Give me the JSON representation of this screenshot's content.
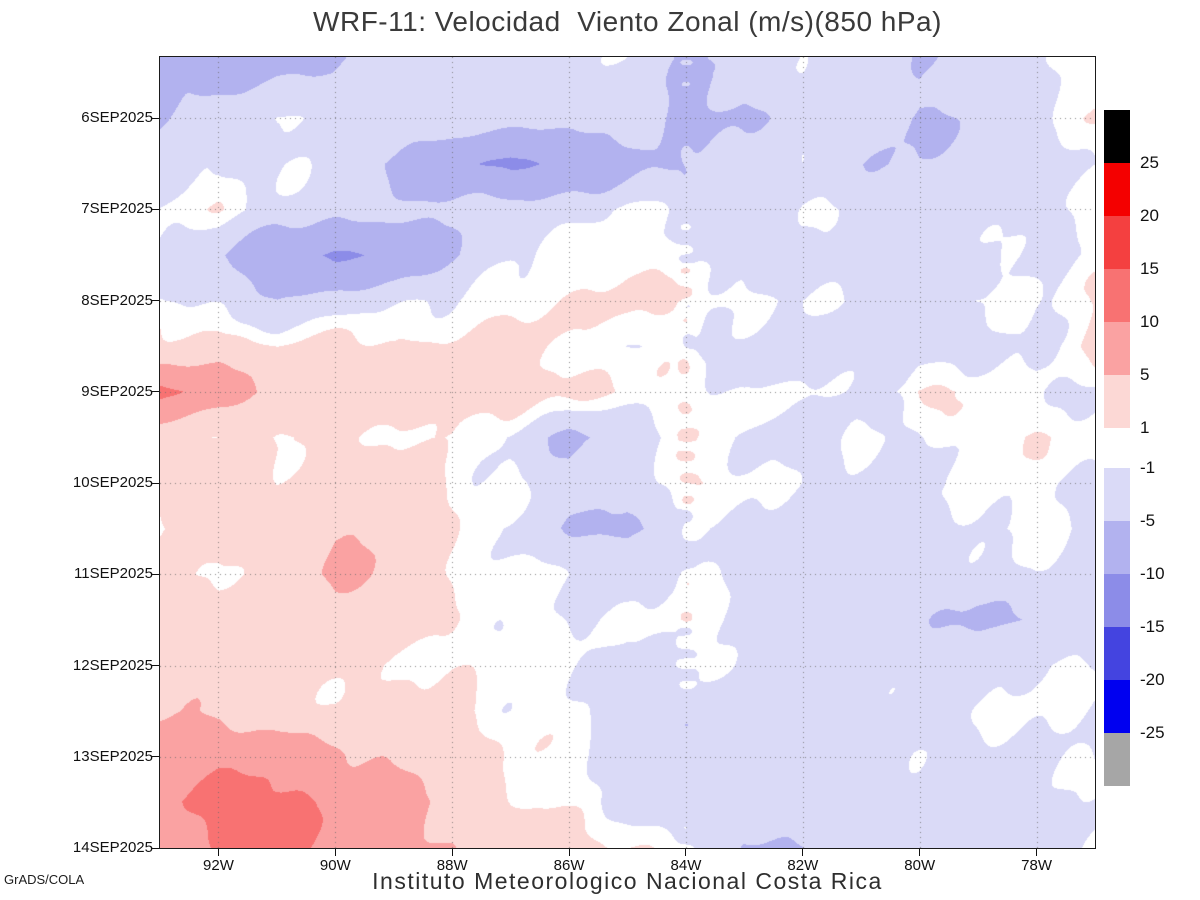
{
  "title": "WRF-11: Velocidad  Viento Zonal (m/s)(850 hPa)",
  "footer": {
    "credit": "GrADS/COLA",
    "caption": "Instituto Meteorologico Nacional Costa Rica"
  },
  "chart_data": {
    "type": "heatmap",
    "title": "WRF-11: Velocidad  Viento Zonal (m/s)(850 hPa)",
    "variable": "zonal wind speed (m/s) at 850 hPa",
    "xlabel": "",
    "ylabel": "",
    "grid_on": true,
    "legend_position": "right-colorbar",
    "x_range_deg_w": [
      93,
      77
    ],
    "y_range_sep2025": [
      5.33,
      14
    ],
    "x_ticks": [
      {
        "value": 92,
        "label": "92W"
      },
      {
        "value": 90,
        "label": "90W"
      },
      {
        "value": 88,
        "label": "88W"
      },
      {
        "value": 86,
        "label": "86W"
      },
      {
        "value": 84,
        "label": "84W"
      },
      {
        "value": 82,
        "label": "82W"
      },
      {
        "value": 80,
        "label": "80W"
      },
      {
        "value": 78,
        "label": "78W"
      }
    ],
    "y_ticks": [
      {
        "value": 6,
        "label": "6SEP2025"
      },
      {
        "value": 7,
        "label": "7SEP2025"
      },
      {
        "value": 8,
        "label": "8SEP2025"
      },
      {
        "value": 9,
        "label": "9SEP2025"
      },
      {
        "value": 10,
        "label": "10SEP2025"
      },
      {
        "value": 11,
        "label": "11SEP2025"
      },
      {
        "value": 12,
        "label": "12SEP2025"
      },
      {
        "value": 13,
        "label": "13SEP2025"
      },
      {
        "value": 14,
        "label": "14SEP2025"
      }
    ],
    "levels": [
      -25,
      -20,
      -15,
      -10,
      -5,
      -1,
      1,
      5,
      10,
      15,
      20,
      25
    ],
    "band_colors": [
      "#a6a6a6",
      "#0000f0",
      "#4444e0",
      "#8c8ce8",
      "#b2b2ef",
      "#dadaf7",
      "#ffffff",
      "#fcd8d5",
      "#faa2a2",
      "#f87272",
      "#f44040",
      "#f40000",
      "#000000"
    ],
    "colorbar_labels": [
      "25",
      "20",
      "15",
      "10",
      "5",
      "1",
      "-1",
      "-5",
      "-10",
      "-15",
      "-20",
      "-25"
    ],
    "grid": {
      "lons_w": [
        93,
        92,
        91,
        90,
        89,
        88,
        87,
        86,
        85,
        84,
        83,
        82,
        81,
        80,
        79,
        78,
        77
      ],
      "times_sep2025": [
        5.5,
        6,
        6.5,
        7,
        7.5,
        8,
        8.5,
        9,
        9.5,
        10,
        10.5,
        11,
        11.5,
        12,
        12.5,
        13,
        13.5,
        14
      ],
      "values": [
        [
          -7,
          -6,
          -5,
          -5,
          -4,
          -4,
          -3,
          -2,
          -2,
          -5,
          -4,
          -2,
          -2,
          -5,
          -4,
          -2,
          0
        ],
        [
          -5,
          -2,
          -1,
          -2,
          -2,
          -3,
          -3,
          -3,
          -3,
          -6,
          -5,
          -3,
          -3,
          -6,
          -4,
          -2,
          1
        ],
        [
          -2,
          -1,
          -1,
          -3,
          -6,
          -9,
          -11,
          -9,
          -7,
          -4,
          -3,
          -2,
          -4,
          -5,
          -3,
          -2,
          -1
        ],
        [
          -1,
          0,
          -2,
          -3,
          -4,
          -4,
          -3,
          -2,
          -1,
          -2,
          -2,
          -1,
          -2,
          -3,
          -2,
          -2,
          -1
        ],
        [
          -2,
          -5,
          -9,
          -11,
          -9,
          -5,
          -2,
          0,
          0,
          -1,
          -2,
          -2,
          -3,
          -2,
          -2,
          -1,
          -1
        ],
        [
          -1,
          -2,
          -4,
          -3,
          -2,
          -1,
          0,
          1,
          2,
          1,
          0,
          -1,
          -2,
          -2,
          -1,
          -1,
          1
        ],
        [
          2,
          3,
          1,
          2,
          1,
          2,
          2,
          1,
          0,
          -1,
          -2,
          -3,
          -3,
          -3,
          -2,
          -1,
          2
        ],
        [
          11,
          7,
          4,
          3,
          3,
          4,
          3,
          2,
          1,
          0,
          -1,
          -1,
          -2,
          2,
          1,
          -1,
          -1
        ],
        [
          2,
          1,
          1,
          2,
          1,
          1,
          -2,
          -6,
          -4,
          0,
          -1,
          -2,
          -1,
          -1,
          0,
          1,
          0
        ],
        [
          2,
          3,
          2,
          4,
          2,
          1,
          -1,
          -4,
          -2,
          1,
          0,
          -1,
          -2,
          -2,
          -1,
          -1,
          -1
        ],
        [
          1,
          2,
          3,
          5,
          3,
          1,
          -2,
          -5,
          -6,
          -2,
          -1,
          -2,
          -3,
          -2,
          -1,
          0,
          -1
        ],
        [
          2,
          1,
          2,
          6,
          3,
          1,
          0,
          -1,
          -2,
          -1,
          -2,
          -3,
          -4,
          -3,
          -2,
          -1,
          -2
        ],
        [
          3,
          2,
          2,
          3,
          2,
          1,
          0,
          -1,
          -1,
          0,
          -2,
          -3,
          -3,
          -3,
          -6,
          -5,
          -2
        ],
        [
          4,
          3,
          2,
          2,
          1,
          1,
          0,
          -1,
          -2,
          -1,
          -2,
          -2,
          -3,
          -2,
          -2,
          -1,
          -1
        ],
        [
          5,
          4,
          3,
          2,
          2,
          1,
          0,
          -1,
          -2,
          -2,
          -3,
          -3,
          -2,
          -2,
          -1,
          -1,
          -1
        ],
        [
          7,
          9,
          8,
          6,
          4,
          3,
          1,
          0,
          -2,
          -3,
          -3,
          -4,
          -3,
          -2,
          -2,
          -1,
          -1
        ],
        [
          9,
          12,
          11,
          9,
          7,
          4,
          2,
          0,
          -2,
          -3,
          -4,
          -3,
          -3,
          -2,
          -2,
          -2,
          -1
        ],
        [
          8,
          10,
          11,
          8,
          6,
          5,
          3,
          2,
          1,
          -1,
          -6,
          -4,
          -3,
          -3,
          -2,
          -2,
          -2
        ]
      ]
    }
  }
}
